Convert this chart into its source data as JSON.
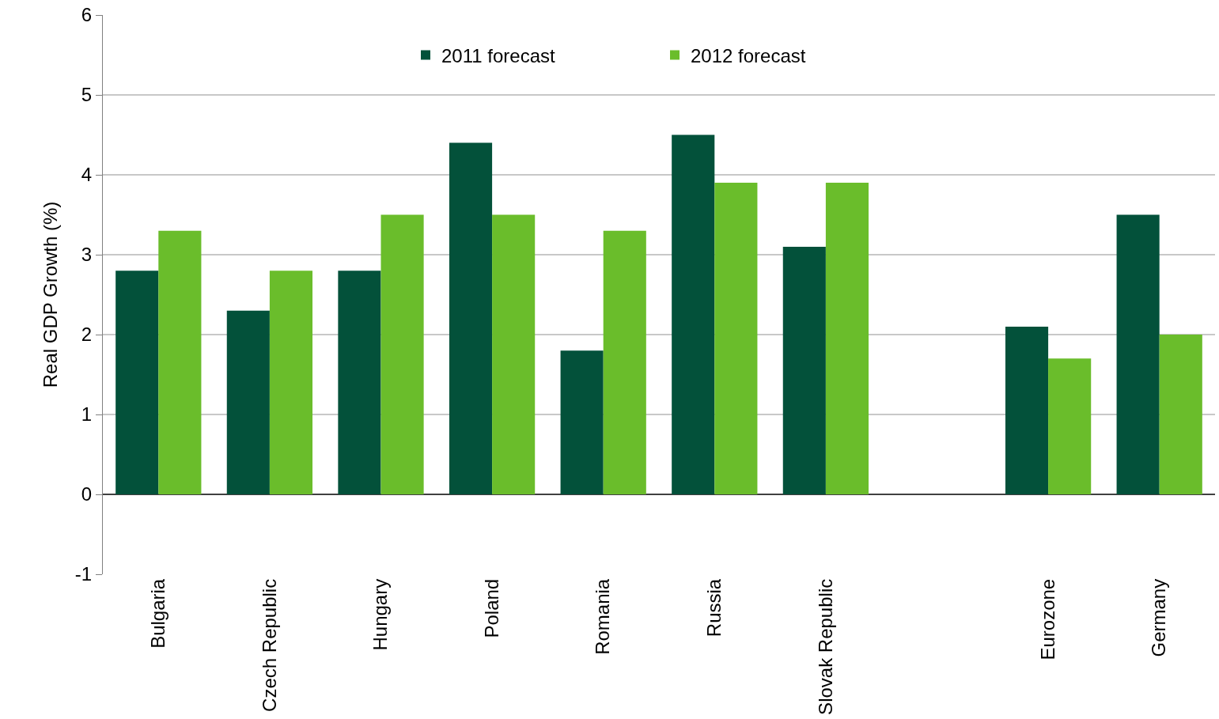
{
  "chart_data": {
    "type": "bar",
    "ylabel": "Real GDP Growth (%)",
    "categories": [
      "Bulgaria",
      "Czech Republic",
      "Hungary",
      "Poland",
      "Romania",
      "Russia",
      "Slovak Republic",
      null,
      "Eurozone",
      "Germany"
    ],
    "series": [
      {
        "name": "2011 forecast",
        "color": "#03513a",
        "values": [
          2.8,
          2.3,
          2.8,
          4.4,
          1.8,
          4.5,
          3.1,
          null,
          2.1,
          3.5
        ]
      },
      {
        "name": "2012 forecast",
        "color": "#6abd2b",
        "values": [
          3.3,
          2.8,
          3.5,
          3.5,
          3.3,
          3.9,
          3.9,
          null,
          1.7,
          2.0
        ]
      }
    ],
    "ylim": [
      -1,
      6
    ],
    "yticks": [
      -1,
      0,
      1,
      2,
      3,
      4,
      5,
      6
    ],
    "grid": "y",
    "legend": "top"
  }
}
